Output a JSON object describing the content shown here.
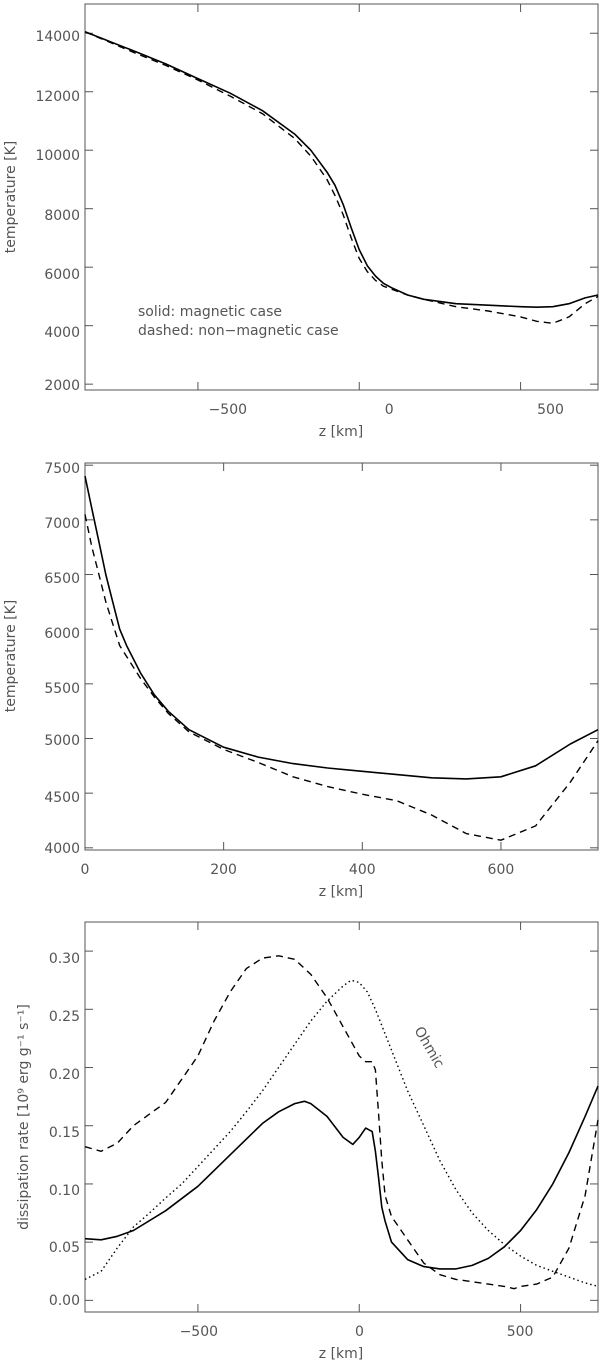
{
  "chart_data": [
    {
      "type": "line",
      "xlabel": "z [km]",
      "ylabel": "temperature [K]",
      "xlim": [
        -850,
        740
      ],
      "ylim": [
        1800,
        15000
      ],
      "xticks": [
        -500,
        0,
        500
      ],
      "xtick_labels": [
        "−500",
        "0",
        "500"
      ],
      "yticks": [
        2000,
        4000,
        6000,
        8000,
        10000,
        12000,
        14000
      ],
      "ytick_labels": [
        "2000",
        "4000",
        "6000",
        "8000",
        "10000",
        "12000",
        "14000"
      ],
      "annotations": [
        "solid: magnetic case",
        "dashed: non−magnetic case"
      ],
      "series": [
        {
          "style": "solid",
          "x": [
            -850,
            -700,
            -600,
            -500,
            -400,
            -300,
            -200,
            -150,
            -100,
            -75,
            -50,
            -25,
            0,
            25,
            50,
            75,
            100,
            150,
            200,
            300,
            400,
            500,
            550,
            600,
            650,
            700,
            740
          ],
          "y": [
            14050,
            13400,
            12950,
            12450,
            11950,
            11350,
            10550,
            10000,
            9250,
            8800,
            8150,
            7350,
            6600,
            6050,
            5700,
            5450,
            5300,
            5050,
            4900,
            4750,
            4700,
            4650,
            4630,
            4650,
            4750,
            4950,
            5050
          ]
        },
        {
          "style": "dashed",
          "x": [
            -850,
            -700,
            -600,
            -500,
            -400,
            -300,
            -200,
            -150,
            -100,
            -75,
            -50,
            -25,
            0,
            25,
            50,
            75,
            100,
            150,
            200,
            300,
            400,
            500,
            550,
            600,
            650,
            700,
            740
          ],
          "y": [
            14050,
            13350,
            12900,
            12400,
            11850,
            11250,
            10400,
            9800,
            9000,
            8450,
            7800,
            7000,
            6300,
            5850,
            5550,
            5350,
            5250,
            5050,
            4900,
            4650,
            4500,
            4300,
            4150,
            4080,
            4300,
            4750,
            5000
          ]
        }
      ]
    },
    {
      "type": "line",
      "xlabel": "z [km]",
      "ylabel": "temperature [K]",
      "xlim": [
        0,
        740
      ],
      "ylim": [
        3980,
        7520
      ],
      "xticks": [
        0,
        200,
        400,
        600
      ],
      "xtick_labels": [
        "0",
        "200",
        "400",
        "600"
      ],
      "yticks": [
        4000,
        4500,
        5000,
        5500,
        6000,
        6500,
        7000,
        7500
      ],
      "ytick_labels": [
        "4000",
        "4500",
        "5000",
        "5500",
        "6000",
        "6500",
        "7000",
        "7500"
      ],
      "series": [
        {
          "style": "solid",
          "x": [
            0,
            10,
            20,
            30,
            40,
            50,
            60,
            80,
            100,
            120,
            150,
            200,
            250,
            300,
            350,
            400,
            450,
            500,
            550,
            600,
            650,
            700,
            740
          ],
          "y": [
            7400,
            7100,
            6800,
            6500,
            6250,
            6000,
            5850,
            5600,
            5400,
            5250,
            5080,
            4920,
            4830,
            4770,
            4730,
            4700,
            4670,
            4640,
            4630,
            4650,
            4750,
            4950,
            5080
          ]
        },
        {
          "style": "dashed",
          "x": [
            0,
            10,
            20,
            30,
            40,
            50,
            60,
            80,
            100,
            120,
            150,
            200,
            250,
            300,
            350,
            400,
            450,
            500,
            550,
            600,
            650,
            700,
            740
          ],
          "y": [
            7050,
            6750,
            6500,
            6250,
            6050,
            5850,
            5750,
            5550,
            5380,
            5230,
            5060,
            4900,
            4780,
            4650,
            4560,
            4490,
            4430,
            4300,
            4130,
            4070,
            4200,
            4600,
            4980
          ]
        }
      ]
    },
    {
      "type": "line",
      "xlabel": "z [km]",
      "ylabel": "dissipation rate [10⁹ erg g⁻¹ s⁻¹]",
      "xlim": [
        -850,
        740
      ],
      "ylim": [
        -0.01,
        0.325
      ],
      "xticks": [
        -500,
        0,
        500
      ],
      "xtick_labels": [
        "−500",
        "0",
        "500"
      ],
      "yticks": [
        0.0,
        0.05,
        0.1,
        0.15,
        0.2,
        0.25,
        0.3
      ],
      "ytick_labels": [
        "0.00",
        "0.05",
        "0.10",
        "0.15",
        "0.20",
        "0.25",
        "0.30"
      ],
      "annotations": [
        "Ohmic"
      ],
      "series": [
        {
          "style": "solid",
          "x": [
            -850,
            -800,
            -750,
            -700,
            -600,
            -500,
            -400,
            -300,
            -250,
            -200,
            -170,
            -150,
            -100,
            -50,
            -20,
            0,
            20,
            40,
            50,
            60,
            70,
            80,
            100,
            150,
            200,
            250,
            300,
            350,
            400,
            450,
            500,
            550,
            600,
            650,
            700,
            740
          ],
          "y": [
            0.053,
            0.052,
            0.055,
            0.06,
            0.077,
            0.098,
            0.125,
            0.152,
            0.162,
            0.169,
            0.171,
            0.169,
            0.158,
            0.14,
            0.134,
            0.14,
            0.148,
            0.145,
            0.128,
            0.105,
            0.08,
            0.068,
            0.05,
            0.035,
            0.029,
            0.027,
            0.027,
            0.03,
            0.036,
            0.046,
            0.06,
            0.078,
            0.1,
            0.127,
            0.158,
            0.184
          ]
        },
        {
          "style": "dashed",
          "x": [
            -850,
            -800,
            -750,
            -700,
            -650,
            -600,
            -550,
            -500,
            -450,
            -400,
            -350,
            -300,
            -250,
            -200,
            -150,
            -100,
            -50,
            0,
            20,
            40,
            50,
            60,
            70,
            80,
            100,
            150,
            200,
            250,
            300,
            350,
            400,
            450,
            480,
            500,
            550,
            600,
            650,
            700,
            740
          ],
          "y": [
            0.132,
            0.128,
            0.135,
            0.15,
            0.16,
            0.17,
            0.19,
            0.21,
            0.24,
            0.265,
            0.285,
            0.294,
            0.296,
            0.293,
            0.28,
            0.26,
            0.235,
            0.21,
            0.205,
            0.205,
            0.198,
            0.16,
            0.12,
            0.09,
            0.072,
            0.052,
            0.032,
            0.022,
            0.018,
            0.016,
            0.014,
            0.012,
            0.01,
            0.012,
            0.014,
            0.02,
            0.045,
            0.09,
            0.155
          ]
        },
        {
          "style": "dotted",
          "name": "Ohmic",
          "x": [
            -850,
            -800,
            -750,
            -700,
            -650,
            -600,
            -550,
            -500,
            -450,
            -400,
            -350,
            -300,
            -250,
            -200,
            -150,
            -100,
            -50,
            -25,
            0,
            25,
            50,
            100,
            150,
            200,
            250,
            300,
            350,
            400,
            450,
            500,
            550,
            600,
            650,
            700,
            740
          ],
          "y": [
            0.018,
            0.025,
            0.045,
            0.063,
            0.075,
            0.088,
            0.1,
            0.115,
            0.13,
            0.145,
            0.162,
            0.18,
            0.2,
            0.22,
            0.24,
            0.257,
            0.27,
            0.275,
            0.273,
            0.265,
            0.25,
            0.215,
            0.18,
            0.15,
            0.12,
            0.095,
            0.075,
            0.06,
            0.048,
            0.038,
            0.03,
            0.025,
            0.02,
            0.015,
            0.012
          ]
        }
      ]
    }
  ]
}
